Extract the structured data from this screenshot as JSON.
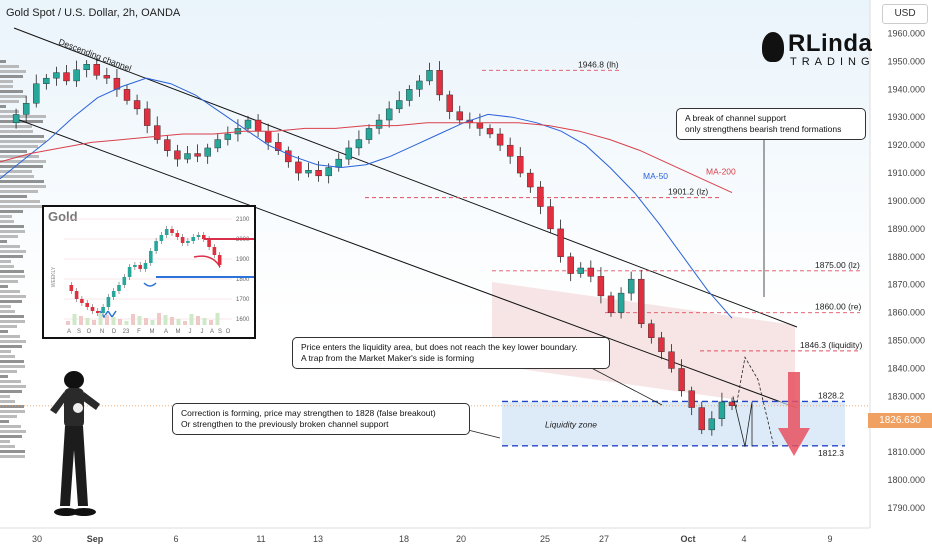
{
  "header": {
    "symbol": "Gold Spot / U.S. Dollar, 2h, OANDA",
    "currency_button": "USD"
  },
  "logo": {
    "top": "RLinda",
    "bottom": "TRADING"
  },
  "chart_data": {
    "type": "candlestick",
    "title": "Gold Spot / U.S. Dollar, 2h, OANDA",
    "ylim": [
      1785,
      1972
    ],
    "y_ticks": [
      1790,
      1800,
      1810,
      1820,
      1830,
      1840,
      1850,
      1860,
      1870,
      1880,
      1890,
      1900,
      1910,
      1920,
      1930,
      1940,
      1950,
      1960
    ],
    "y_tick_labels": [
      "1790.000",
      "1800.000",
      "1810.000",
      "1820.000",
      "1830.000",
      "1840.000",
      "1850.000",
      "1860.000",
      "1870.000",
      "1880.000",
      "1890.000",
      "1900.000",
      "1910.000",
      "1920.000",
      "1930.000",
      "1940.000",
      "1950.000",
      "1960.000"
    ],
    "x_tick_labels": [
      "30",
      "Sep",
      "6",
      "11",
      "13",
      "18",
      "20",
      "25",
      "27",
      "Oct",
      "4",
      "9"
    ],
    "current_price": "1826.630",
    "bar_colors": {
      "up": "#27a69a",
      "down": "#e03040"
    },
    "close_path": [
      1928,
      1931,
      1935,
      1942,
      1944,
      1946,
      1943,
      1947,
      1949,
      1945,
      1944,
      1940,
      1936,
      1933,
      1927,
      1922,
      1918,
      1915,
      1917,
      1916,
      1919,
      1922,
      1924,
      1926,
      1929,
      1925,
      1921,
      1918,
      1914,
      1910,
      1911,
      1909,
      1912,
      1915,
      1919,
      1922,
      1926,
      1929,
      1933,
      1936,
      1940,
      1943,
      1946.8,
      1938,
      1932,
      1929,
      1928,
      1926,
      1924,
      1920,
      1916,
      1910,
      1905,
      1898,
      1890,
      1880,
      1874,
      1876,
      1873,
      1866,
      1860,
      1867,
      1872,
      1856,
      1851,
      1846,
      1840,
      1832,
      1826,
      1818,
      1822,
      1828,
      1826.63
    ],
    "series": [
      {
        "name": "MA-50",
        "color": "#2b63d9",
        "values": [
          1908,
          1915,
          1922,
          1930,
          1937,
          1941,
          1944,
          1942,
          1938,
          1932,
          1926,
          1920,
          1916,
          1913,
          1912,
          1913,
          1916,
          1920,
          1924,
          1928,
          1931,
          1930,
          1928,
          1925,
          1920,
          1912,
          1903,
          1892,
          1880,
          1868,
          1858
        ]
      },
      {
        "name": "MA-200",
        "color": "#d9404a",
        "values": [
          1914,
          1917,
          1919,
          1921,
          1922,
          1923,
          1924,
          1924,
          1925,
          1925,
          1926,
          1926,
          1927,
          1927,
          1928,
          1928,
          1928,
          1928,
          1927,
          1925,
          1922,
          1918,
          1913,
          1908,
          1903
        ]
      }
    ],
    "levels": [
      {
        "label": "1946.8 (lh)",
        "value": 1946.8,
        "style": "dashed",
        "color": "#e05060"
      },
      {
        "label": "1901.2 (lz)",
        "value": 1901.2,
        "style": "dashed",
        "color": "#e05060"
      },
      {
        "label": "1875.00 (lz)",
        "value": 1875.0,
        "style": "dashed",
        "color": "#e05060"
      },
      {
        "label": "1860.00 (re)",
        "value": 1860.0,
        "style": "dashed",
        "color": "#e05060"
      },
      {
        "label": "1846.3 (liquidity)",
        "value": 1846.3,
        "style": "dashed",
        "color": "#e05060"
      },
      {
        "label": "1828.2",
        "value": 1828.2,
        "style": "dashed",
        "color": "#2446c8"
      },
      {
        "label": "1812.3",
        "value": 1812.3,
        "style": "dashed",
        "color": "#2446c8"
      }
    ],
    "annotations": {
      "channel": "Descending channel",
      "ma50": "MA-50",
      "ma200": "MA-200",
      "liquidity_zone": "Liquidity zone"
    },
    "callouts": [
      {
        "line1": "A break of channel support",
        "line2": "only strengthens bearish trend formations"
      },
      {
        "line1": "Price enters the liquidity area, but does not reach the key lower boundary.",
        "line2": "A trap from the Market Maker's side is forming"
      },
      {
        "line1": "Correction is forming, price may strengthen to 1828 (false breakout)",
        "line2": "Or strengthen to the previously broken channel support"
      }
    ],
    "inset": {
      "title": "Gold",
      "side_label": "WEEKLY",
      "y_tick_labels": [
        "2100",
        "2000",
        "1900",
        "1800",
        "1700",
        "1600"
      ],
      "x_tick_labels": [
        "A",
        "S",
        "O",
        "N",
        "D",
        "23",
        "F",
        "M",
        "A",
        "M",
        "J",
        "J",
        "A",
        "S",
        "O"
      ]
    },
    "colors": {
      "accent_red": "#e03040",
      "accent_blue": "#2446c8",
      "price_flag": "#f0a060"
    }
  }
}
